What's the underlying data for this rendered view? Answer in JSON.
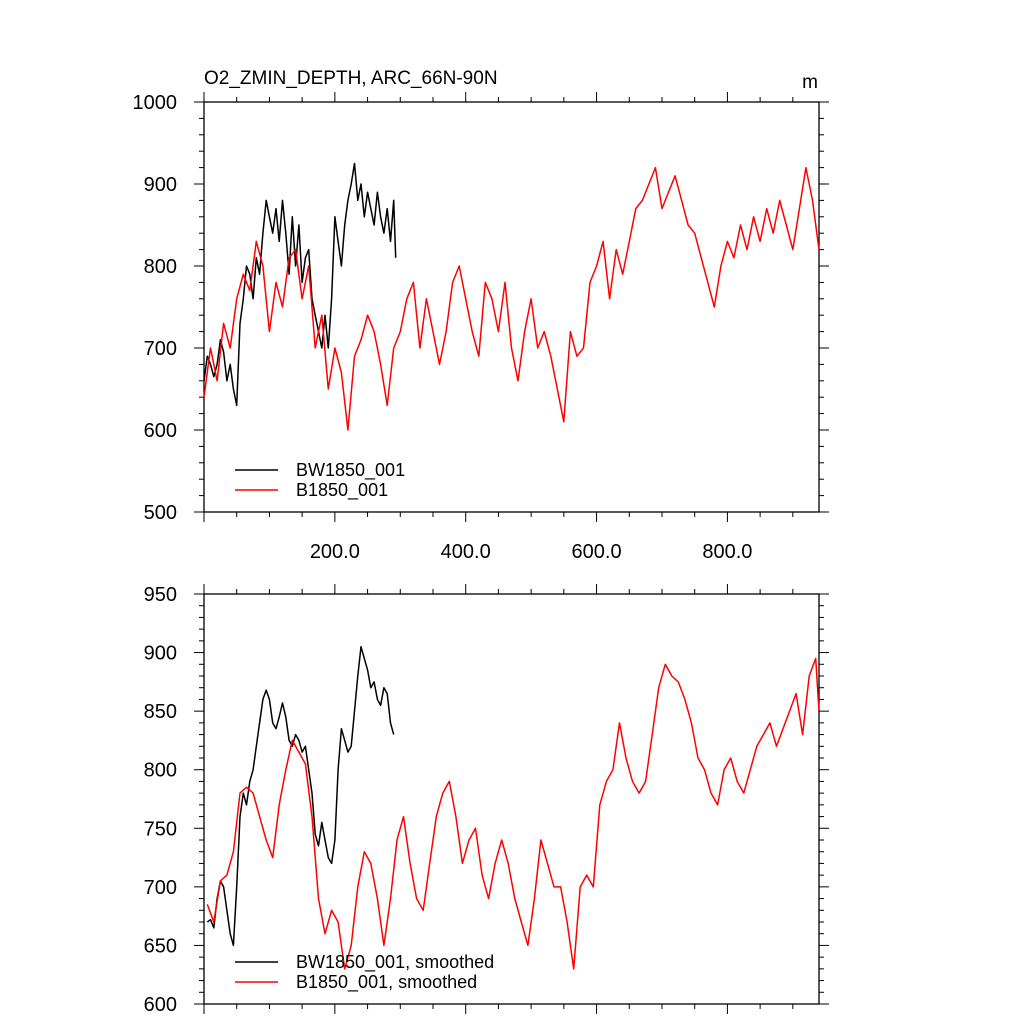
{
  "chart_data": [
    {
      "type": "line",
      "title": "O2_ZMIN_DEPTH, ARC_66N-90N",
      "unit_label": "m",
      "xlim": [
        0,
        940
      ],
      "ylim": [
        500,
        1000
      ],
      "x_ticks": [
        200,
        400,
        600,
        800
      ],
      "x_tick_labels": [
        "200.0",
        "400.0",
        "600.0",
        "800.0"
      ],
      "y_ticks": [
        500,
        600,
        700,
        800,
        900,
        1000
      ],
      "y_tick_labels": [
        "500",
        "600",
        "700",
        "800",
        "900",
        "1000"
      ],
      "legend_position": "bottom-left",
      "series": [
        {
          "name": "BW1850_001",
          "color": "#000000",
          "x": [
            0,
            5,
            10,
            15,
            20,
            25,
            30,
            35,
            40,
            45,
            50,
            55,
            60,
            65,
            70,
            75,
            80,
            85,
            90,
            95,
            100,
            105,
            110,
            115,
            120,
            125,
            130,
            135,
            140,
            145,
            150,
            155,
            160,
            165,
            170,
            175,
            180,
            185,
            190,
            195,
            200,
            205,
            210,
            215,
            220,
            225,
            230,
            235,
            240,
            245,
            250,
            255,
            260,
            265,
            270,
            275,
            280,
            285,
            290,
            293
          ],
          "y": [
            660,
            690,
            680,
            665,
            680,
            710,
            695,
            660,
            680,
            650,
            630,
            730,
            760,
            800,
            790,
            760,
            810,
            790,
            840,
            880,
            860,
            840,
            870,
            830,
            880,
            840,
            790,
            860,
            800,
            850,
            780,
            810,
            820,
            760,
            740,
            720,
            700,
            740,
            700,
            760,
            860,
            830,
            800,
            850,
            880,
            900,
            925,
            880,
            900,
            860,
            890,
            870,
            850,
            890,
            860,
            840,
            870,
            830,
            880,
            810
          ]
        },
        {
          "name": "B1850_001",
          "color": "#ff0000",
          "x": [
            0,
            10,
            20,
            30,
            40,
            50,
            60,
            70,
            80,
            90,
            100,
            110,
            120,
            130,
            140,
            150,
            160,
            170,
            180,
            190,
            200,
            210,
            220,
            230,
            240,
            250,
            260,
            270,
            280,
            290,
            300,
            310,
            320,
            330,
            340,
            350,
            360,
            370,
            380,
            390,
            400,
            410,
            420,
            430,
            440,
            450,
            460,
            470,
            480,
            490,
            500,
            510,
            520,
            530,
            540,
            550,
            560,
            570,
            580,
            590,
            600,
            610,
            620,
            630,
            640,
            650,
            660,
            670,
            680,
            690,
            700,
            710,
            720,
            730,
            740,
            750,
            760,
            770,
            780,
            790,
            800,
            810,
            820,
            830,
            840,
            850,
            860,
            870,
            880,
            890,
            900,
            910,
            920,
            930,
            940
          ],
          "y": [
            640,
            700,
            660,
            730,
            700,
            760,
            790,
            770,
            830,
            800,
            720,
            780,
            750,
            810,
            820,
            760,
            800,
            700,
            740,
            650,
            700,
            670,
            600,
            690,
            710,
            740,
            720,
            680,
            630,
            700,
            720,
            760,
            780,
            700,
            760,
            720,
            680,
            720,
            780,
            800,
            760,
            720,
            690,
            780,
            760,
            720,
            780,
            700,
            660,
            720,
            760,
            700,
            720,
            690,
            650,
            610,
            720,
            690,
            700,
            780,
            800,
            830,
            760,
            820,
            790,
            830,
            870,
            880,
            900,
            920,
            870,
            890,
            910,
            880,
            850,
            840,
            810,
            780,
            750,
            800,
            830,
            810,
            850,
            820,
            860,
            830,
            870,
            840,
            880,
            850,
            820,
            870,
            920,
            880,
            820
          ]
        }
      ]
    },
    {
      "type": "line",
      "xlim": [
        0,
        940
      ],
      "ylim": [
        600,
        950
      ],
      "y_ticks": [
        600,
        650,
        700,
        750,
        800,
        850,
        900,
        950
      ],
      "y_tick_labels": [
        "600",
        "650",
        "700",
        "750",
        "800",
        "850",
        "900",
        "950"
      ],
      "legend_position": "bottom-left",
      "series": [
        {
          "name": "BW1850_001, smoothed",
          "color": "#000000",
          "x": [
            5,
            10,
            15,
            20,
            25,
            30,
            35,
            40,
            45,
            50,
            55,
            60,
            65,
            70,
            75,
            80,
            85,
            90,
            95,
            100,
            105,
            110,
            115,
            120,
            125,
            130,
            135,
            140,
            145,
            150,
            155,
            160,
            165,
            170,
            175,
            180,
            185,
            190,
            195,
            200,
            205,
            210,
            215,
            220,
            225,
            230,
            235,
            240,
            245,
            250,
            255,
            260,
            265,
            270,
            275,
            280,
            285,
            290
          ],
          "y": [
            670,
            672,
            665,
            690,
            705,
            700,
            680,
            660,
            650,
            700,
            760,
            780,
            770,
            790,
            800,
            820,
            840,
            860,
            868,
            860,
            840,
            835,
            845,
            857,
            845,
            825,
            820,
            830,
            825,
            815,
            820,
            800,
            780,
            745,
            735,
            755,
            740,
            725,
            720,
            740,
            800,
            835,
            825,
            815,
            820,
            850,
            880,
            905,
            895,
            885,
            870,
            875,
            860,
            855,
            870,
            865,
            840,
            830
          ]
        },
        {
          "name": "B1850_001, smoothed",
          "color": "#ff0000",
          "x": [
            5,
            15,
            25,
            35,
            45,
            55,
            65,
            75,
            85,
            95,
            105,
            115,
            125,
            135,
            145,
            155,
            165,
            175,
            185,
            195,
            205,
            215,
            225,
            235,
            245,
            255,
            265,
            275,
            285,
            295,
            305,
            315,
            325,
            335,
            345,
            355,
            365,
            375,
            385,
            395,
            405,
            415,
            425,
            435,
            445,
            455,
            465,
            475,
            485,
            495,
            505,
            515,
            525,
            535,
            545,
            555,
            565,
            575,
            585,
            595,
            605,
            615,
            625,
            635,
            645,
            655,
            665,
            675,
            685,
            695,
            705,
            715,
            725,
            735,
            745,
            755,
            765,
            775,
            785,
            795,
            805,
            815,
            825,
            835,
            845,
            855,
            865,
            875,
            885,
            895,
            905,
            915,
            925,
            935,
            940
          ],
          "y": [
            685,
            670,
            705,
            710,
            730,
            780,
            785,
            780,
            760,
            740,
            725,
            770,
            800,
            825,
            815,
            805,
            760,
            690,
            660,
            680,
            670,
            630,
            650,
            700,
            730,
            720,
            690,
            650,
            690,
            740,
            760,
            720,
            690,
            680,
            720,
            760,
            780,
            790,
            760,
            720,
            740,
            750,
            710,
            690,
            720,
            740,
            720,
            690,
            670,
            650,
            690,
            740,
            720,
            700,
            700,
            670,
            630,
            700,
            710,
            700,
            770,
            790,
            800,
            840,
            810,
            790,
            780,
            790,
            830,
            870,
            890,
            880,
            875,
            860,
            840,
            810,
            800,
            780,
            770,
            800,
            810,
            790,
            780,
            800,
            820,
            830,
            840,
            820,
            835,
            850,
            865,
            830,
            880,
            895,
            850
          ]
        }
      ]
    }
  ]
}
